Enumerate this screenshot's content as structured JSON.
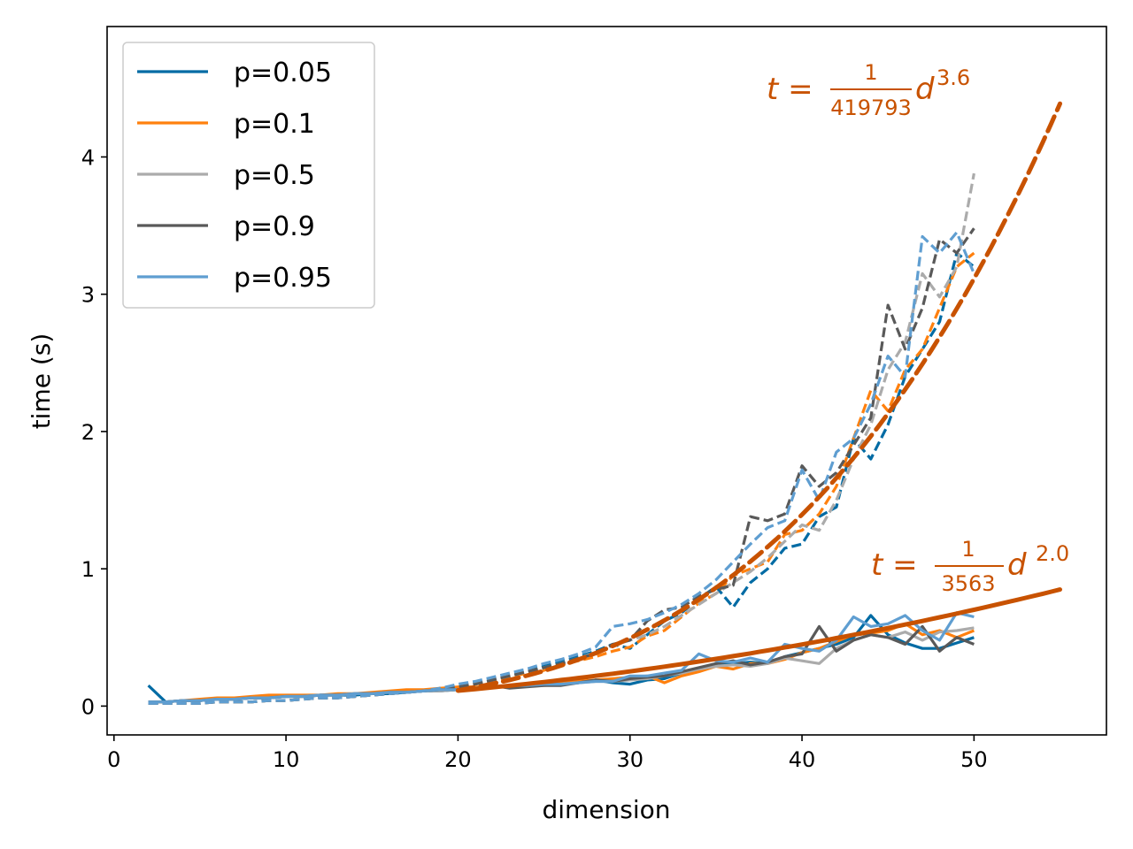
{
  "chart_data": {
    "type": "line",
    "title": "",
    "xlabel": "dimension",
    "ylabel": "time (s)",
    "xlim": [
      -0.4,
      57.7
    ],
    "ylim": [
      -0.21,
      4.95
    ],
    "xticks": [
      0,
      10,
      20,
      30,
      40,
      50
    ],
    "yticks": [
      0,
      1,
      2,
      3,
      4
    ],
    "grid": false,
    "legend_position": "top-left",
    "x": [
      2,
      3,
      4,
      5,
      6,
      7,
      8,
      9,
      10,
      11,
      12,
      13,
      14,
      15,
      16,
      17,
      18,
      19,
      20,
      21,
      22,
      23,
      24,
      25,
      26,
      27,
      28,
      29,
      30,
      31,
      32,
      33,
      34,
      35,
      36,
      37,
      38,
      39,
      40,
      41,
      42,
      43,
      44,
      45,
      46,
      47,
      48,
      49,
      50
    ],
    "series": [
      {
        "name": "p=0.05",
        "color": "#006ba4",
        "solid": [
          0.15,
          0.03,
          0.04,
          0.04,
          0.05,
          0.05,
          0.06,
          0.06,
          0.07,
          0.07,
          0.08,
          0.08,
          0.08,
          0.09,
          0.09,
          0.1,
          0.11,
          0.11,
          0.12,
          0.13,
          0.14,
          0.15,
          0.15,
          0.16,
          0.16,
          0.17,
          0.19,
          0.17,
          0.16,
          0.19,
          0.2,
          0.24,
          0.27,
          0.3,
          0.31,
          0.32,
          0.31,
          0.36,
          0.39,
          0.42,
          0.45,
          0.5,
          0.66,
          0.52,
          0.46,
          0.42,
          0.42,
          0.46,
          0.5
        ],
        "dashed": [
          0.02,
          0.02,
          0.02,
          0.03,
          0.03,
          0.03,
          0.03,
          0.04,
          0.04,
          0.05,
          0.06,
          0.06,
          0.07,
          0.08,
          0.09,
          0.1,
          0.11,
          0.12,
          0.14,
          0.16,
          0.19,
          0.22,
          0.25,
          0.29,
          0.32,
          0.36,
          0.4,
          0.45,
          0.42,
          0.52,
          0.62,
          0.68,
          0.78,
          0.87,
          0.72,
          0.9,
          1.0,
          1.15,
          1.18,
          1.38,
          1.45,
          1.95,
          1.8,
          2.05,
          2.4,
          2.6,
          2.8,
          3.3,
          3.2
        ]
      },
      {
        "name": "p=0.1",
        "color": "#ff800e",
        "solid": [
          0.03,
          0.03,
          0.04,
          0.05,
          0.06,
          0.06,
          0.07,
          0.08,
          0.08,
          0.08,
          0.08,
          0.09,
          0.09,
          0.1,
          0.11,
          0.12,
          0.12,
          0.13,
          0.14,
          0.14,
          0.14,
          0.15,
          0.16,
          0.17,
          0.17,
          0.18,
          0.19,
          0.2,
          0.21,
          0.22,
          0.17,
          0.22,
          0.25,
          0.29,
          0.27,
          0.31,
          0.31,
          0.34,
          0.39,
          0.42,
          0.47,
          0.52,
          0.53,
          0.55,
          0.6,
          0.52,
          0.55,
          0.5,
          0.55
        ],
        "dashed": [
          0.02,
          0.02,
          0.02,
          0.02,
          0.03,
          0.03,
          0.03,
          0.04,
          0.04,
          0.05,
          0.06,
          0.07,
          0.07,
          0.08,
          0.09,
          0.1,
          0.11,
          0.13,
          0.14,
          0.16,
          0.18,
          0.21,
          0.24,
          0.26,
          0.3,
          0.33,
          0.36,
          0.4,
          0.43,
          0.51,
          0.55,
          0.65,
          0.75,
          0.82,
          0.95,
          1.0,
          1.05,
          1.25,
          1.28,
          1.4,
          1.6,
          1.95,
          2.3,
          2.15,
          2.45,
          2.6,
          2.9,
          3.2,
          3.3
        ]
      },
      {
        "name": "p=0.5",
        "color": "#ababab",
        "solid": [
          0.03,
          0.03,
          0.04,
          0.04,
          0.05,
          0.05,
          0.06,
          0.06,
          0.07,
          0.07,
          0.08,
          0.08,
          0.09,
          0.09,
          0.1,
          0.1,
          0.11,
          0.11,
          0.12,
          0.13,
          0.14,
          0.15,
          0.15,
          0.15,
          0.16,
          0.17,
          0.18,
          0.18,
          0.19,
          0.2,
          0.22,
          0.24,
          0.27,
          0.29,
          0.3,
          0.29,
          0.31,
          0.35,
          0.33,
          0.31,
          0.42,
          0.48,
          0.52,
          0.5,
          0.54,
          0.48,
          0.54,
          0.55,
          0.57
        ],
        "dashed": [
          0.02,
          0.02,
          0.02,
          0.02,
          0.03,
          0.03,
          0.03,
          0.04,
          0.04,
          0.05,
          0.06,
          0.06,
          0.07,
          0.08,
          0.09,
          0.1,
          0.11,
          0.13,
          0.15,
          0.17,
          0.19,
          0.22,
          0.25,
          0.28,
          0.31,
          0.35,
          0.39,
          0.44,
          0.48,
          0.52,
          0.58,
          0.66,
          0.74,
          0.82,
          0.9,
          0.98,
          1.08,
          1.2,
          1.32,
          1.28,
          1.5,
          1.8,
          2.05,
          2.45,
          2.65,
          3.15,
          2.98,
          3.2,
          3.88
        ]
      },
      {
        "name": "p=0.9",
        "color": "#595959",
        "solid": [
          0.03,
          0.03,
          0.04,
          0.04,
          0.05,
          0.05,
          0.06,
          0.06,
          0.07,
          0.07,
          0.08,
          0.08,
          0.09,
          0.09,
          0.1,
          0.1,
          0.11,
          0.12,
          0.12,
          0.13,
          0.15,
          0.13,
          0.14,
          0.15,
          0.15,
          0.17,
          0.19,
          0.18,
          0.2,
          0.21,
          0.22,
          0.25,
          0.28,
          0.31,
          0.33,
          0.3,
          0.32,
          0.36,
          0.38,
          0.58,
          0.4,
          0.48,
          0.52,
          0.5,
          0.45,
          0.58,
          0.4,
          0.5,
          0.45
        ],
        "dashed": [
          0.02,
          0.02,
          0.02,
          0.02,
          0.03,
          0.03,
          0.03,
          0.04,
          0.04,
          0.05,
          0.06,
          0.06,
          0.07,
          0.08,
          0.09,
          0.1,
          0.11,
          0.13,
          0.14,
          0.16,
          0.19,
          0.22,
          0.25,
          0.28,
          0.31,
          0.35,
          0.38,
          0.45,
          0.48,
          0.62,
          0.7,
          0.72,
          0.8,
          0.85,
          0.88,
          1.38,
          1.35,
          1.4,
          1.75,
          1.6,
          1.7,
          1.9,
          2.1,
          2.92,
          2.6,
          2.9,
          3.4,
          3.3,
          3.48
        ]
      },
      {
        "name": "p=0.95",
        "color": "#5f9ed1",
        "solid": [
          0.03,
          0.03,
          0.04,
          0.04,
          0.05,
          0.05,
          0.06,
          0.06,
          0.07,
          0.07,
          0.08,
          0.08,
          0.09,
          0.09,
          0.1,
          0.1,
          0.11,
          0.12,
          0.12,
          0.13,
          0.14,
          0.15,
          0.15,
          0.16,
          0.16,
          0.17,
          0.18,
          0.18,
          0.22,
          0.22,
          0.24,
          0.26,
          0.38,
          0.33,
          0.32,
          0.35,
          0.32,
          0.45,
          0.42,
          0.4,
          0.48,
          0.65,
          0.58,
          0.6,
          0.66,
          0.55,
          0.48,
          0.68,
          0.65
        ],
        "dashed": [
          0.02,
          0.02,
          0.02,
          0.02,
          0.03,
          0.03,
          0.03,
          0.04,
          0.04,
          0.05,
          0.06,
          0.06,
          0.07,
          0.08,
          0.09,
          0.1,
          0.11,
          0.13,
          0.16,
          0.18,
          0.21,
          0.24,
          0.27,
          0.31,
          0.34,
          0.38,
          0.43,
          0.58,
          0.6,
          0.63,
          0.68,
          0.74,
          0.82,
          0.92,
          1.05,
          1.18,
          1.3,
          1.35,
          1.72,
          1.5,
          1.85,
          1.95,
          2.2,
          2.55,
          2.4,
          3.42,
          3.3,
          3.45,
          3.15
        ]
      }
    ],
    "fits": [
      {
        "name": "fit-cubic",
        "style": "dashed",
        "color": "#c85200",
        "x_range": [
          20,
          55
        ],
        "coef_denominator": 419793,
        "exponent": 3.6,
        "label_prefix": "t = ",
        "label_numerator": "1",
        "label_denominator": "419793",
        "label_d": "d",
        "label_exponent": "3.6"
      },
      {
        "name": "fit-quadratic",
        "style": "solid",
        "color": "#c85200",
        "x_range": [
          20,
          55
        ],
        "coef_denominator": 3563,
        "exponent": 2.0,
        "label_prefix": "t = ",
        "label_numerator": "1",
        "label_denominator": "3563",
        "label_d": "d",
        "label_exponent": "2.0"
      }
    ]
  }
}
